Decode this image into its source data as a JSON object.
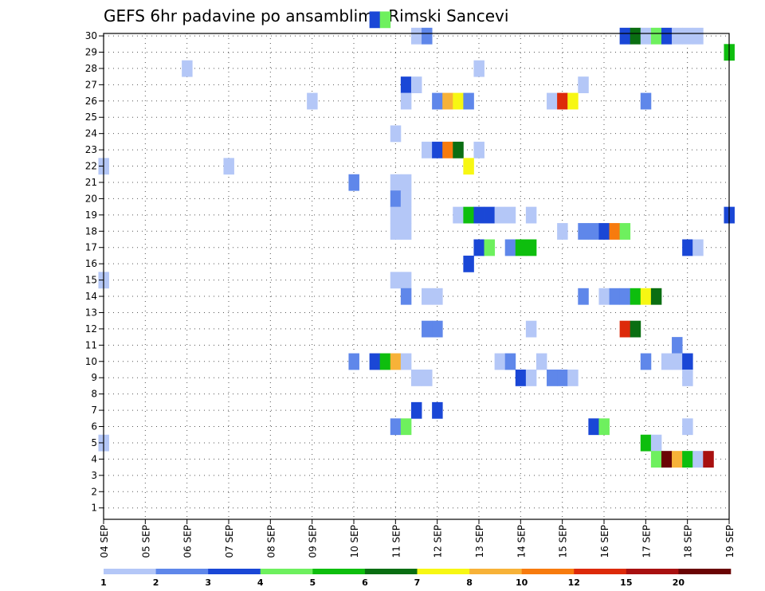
{
  "chart_data": {
    "type": "heatmap",
    "title": "GEFS 6hr padavine po ansamblima Rimski Sancevi",
    "xlabel": "",
    "ylabel": "",
    "x_ticks": [
      "04 SEP",
      "05 SEP",
      "06 SEP",
      "07 SEP",
      "08 SEP",
      "09 SEP",
      "10 SEP",
      "11 SEP",
      "12 SEP",
      "13 SEP",
      "14 SEP",
      "15 SEP",
      "16 SEP",
      "17 SEP",
      "18 SEP",
      "19 SEP"
    ],
    "xlim_days": [
      0,
      15
    ],
    "y_ticks": [
      "1",
      "2",
      "3",
      "4",
      "5",
      "6",
      "7",
      "8",
      "9",
      "10",
      "11",
      "12",
      "13",
      "14",
      "15",
      "16",
      "17",
      "18",
      "19",
      "20",
      "21",
      "22",
      "23",
      "24",
      "25",
      "26",
      "27",
      "28",
      "29",
      "30"
    ],
    "ylim": [
      0.3,
      30.15
    ],
    "grid": true,
    "colorbar": {
      "colors": [
        "#b4c7f7",
        "#5f87ea",
        "#1a47d6",
        "#6ef05e",
        "#0ebe0e",
        "#0a6e12",
        "#f7f713",
        "#f7b238",
        "#f77b0e",
        "#dd2a0a",
        "#a81010",
        "#6a0404"
      ],
      "labels": [
        "1",
        "2",
        "3",
        "4",
        "5",
        "6",
        "7",
        "8",
        "10",
        "12",
        "15",
        "20"
      ],
      "placement": "bottom"
    },
    "cells": [
      {
        "m": 30,
        "d": 6.5,
        "c": 2
      },
      {
        "m": 30,
        "d": 6.75,
        "c": 3
      },
      {
        "m": 29,
        "d": 7.5,
        "c": 0
      },
      {
        "m": 29,
        "d": 7.75,
        "c": 1
      },
      {
        "m": 29,
        "d": 12.5,
        "c": 2
      },
      {
        "m": 29,
        "d": 12.75,
        "c": 5
      },
      {
        "m": 29,
        "d": 13.0,
        "c": 0
      },
      {
        "m": 29,
        "d": 13.25,
        "c": 3
      },
      {
        "m": 29,
        "d": 13.5,
        "c": 2
      },
      {
        "m": 29,
        "d": 13.75,
        "c": 0
      },
      {
        "m": 29,
        "d": 14.0,
        "c": 0
      },
      {
        "m": 29,
        "d": 14.25,
        "c": 0
      },
      {
        "m": 28,
        "d": 15.0,
        "c": 4
      },
      {
        "m": 27,
        "d": 2.0,
        "c": 0
      },
      {
        "m": 27,
        "d": 9.0,
        "c": 0
      },
      {
        "m": 26,
        "d": 7.25,
        "c": 2
      },
      {
        "m": 26,
        "d": 7.5,
        "c": 0
      },
      {
        "m": 26,
        "d": 11.5,
        "c": 0
      },
      {
        "m": 25,
        "d": 5.0,
        "c": 0
      },
      {
        "m": 25,
        "d": 7.25,
        "c": 0
      },
      {
        "m": 25,
        "d": 8.0,
        "c": 1
      },
      {
        "m": 25,
        "d": 8.25,
        "c": 7
      },
      {
        "m": 25,
        "d": 8.5,
        "c": 6
      },
      {
        "m": 25,
        "d": 8.75,
        "c": 1
      },
      {
        "m": 25,
        "d": 10.75,
        "c": 0
      },
      {
        "m": 25,
        "d": 11.0,
        "c": 9
      },
      {
        "m": 25,
        "d": 11.25,
        "c": 6
      },
      {
        "m": 25,
        "d": 13.0,
        "c": 1
      },
      {
        "m": 23,
        "d": 7.0,
        "c": 0
      },
      {
        "m": 22,
        "d": 7.75,
        "c": 0
      },
      {
        "m": 22,
        "d": 8.0,
        "c": 2
      },
      {
        "m": 22,
        "d": 8.25,
        "c": 8
      },
      {
        "m": 22,
        "d": 8.5,
        "c": 5
      },
      {
        "m": 22,
        "d": 9.0,
        "c": 0
      },
      {
        "m": 21,
        "d": 0.0,
        "c": 0
      },
      {
        "m": 21,
        "d": 3.0,
        "c": 0
      },
      {
        "m": 21,
        "d": 8.75,
        "c": 6
      },
      {
        "m": 20,
        "d": 6.0,
        "c": 1
      },
      {
        "m": 20,
        "d": 7.0,
        "c": 0
      },
      {
        "m": 20,
        "d": 7.25,
        "c": 0
      },
      {
        "m": 19,
        "d": 7.0,
        "c": 1
      },
      {
        "m": 19,
        "d": 7.25,
        "c": 0
      },
      {
        "m": 18,
        "d": 7.0,
        "c": 0
      },
      {
        "m": 18,
        "d": 7.25,
        "c": 0
      },
      {
        "m": 18,
        "d": 8.5,
        "c": 0
      },
      {
        "m": 18,
        "d": 8.75,
        "c": 4
      },
      {
        "m": 18,
        "d": 9.0,
        "c": 2
      },
      {
        "m": 18,
        "d": 9.25,
        "c": 2
      },
      {
        "m": 18,
        "d": 9.5,
        "c": 0
      },
      {
        "m": 18,
        "d": 9.75,
        "c": 0
      },
      {
        "m": 18,
        "d": 10.25,
        "c": 0
      },
      {
        "m": 18,
        "d": 15.0,
        "c": 2
      },
      {
        "m": 17,
        "d": 7.0,
        "c": 0
      },
      {
        "m": 17,
        "d": 7.25,
        "c": 0
      },
      {
        "m": 17,
        "d": 11.0,
        "c": 0
      },
      {
        "m": 17,
        "d": 11.5,
        "c": 1
      },
      {
        "m": 17,
        "d": 11.75,
        "c": 1
      },
      {
        "m": 17,
        "d": 12.0,
        "c": 2
      },
      {
        "m": 17,
        "d": 12.25,
        "c": 8
      },
      {
        "m": 17,
        "d": 12.5,
        "c": 3
      },
      {
        "m": 16,
        "d": 9.0,
        "c": 2
      },
      {
        "m": 16,
        "d": 9.25,
        "c": 3
      },
      {
        "m": 16,
        "d": 9.75,
        "c": 1
      },
      {
        "m": 16,
        "d": 10.0,
        "c": 4
      },
      {
        "m": 16,
        "d": 10.25,
        "c": 4
      },
      {
        "m": 16,
        "d": 14.0,
        "c": 2
      },
      {
        "m": 16,
        "d": 14.25,
        "c": 0
      },
      {
        "m": 15,
        "d": 8.75,
        "c": 2
      },
      {
        "m": 14,
        "d": 0.0,
        "c": 0
      },
      {
        "m": 14,
        "d": 7.0,
        "c": 0
      },
      {
        "m": 14,
        "d": 7.25,
        "c": 0
      },
      {
        "m": 13,
        "d": 7.25,
        "c": 1
      },
      {
        "m": 13,
        "d": 7.75,
        "c": 0
      },
      {
        "m": 13,
        "d": 8.0,
        "c": 0
      },
      {
        "m": 13,
        "d": 11.5,
        "c": 1
      },
      {
        "m": 13,
        "d": 12.0,
        "c": 0
      },
      {
        "m": 13,
        "d": 12.25,
        "c": 1
      },
      {
        "m": 13,
        "d": 12.5,
        "c": 1
      },
      {
        "m": 13,
        "d": 12.75,
        "c": 4
      },
      {
        "m": 13,
        "d": 13.0,
        "c": 6
      },
      {
        "m": 13,
        "d": 13.25,
        "c": 5
      },
      {
        "m": 11,
        "d": 7.75,
        "c": 1
      },
      {
        "m": 11,
        "d": 8.0,
        "c": 1
      },
      {
        "m": 11,
        "d": 10.25,
        "c": 0
      },
      {
        "m": 11,
        "d": 12.5,
        "c": 9
      },
      {
        "m": 11,
        "d": 12.75,
        "c": 5
      },
      {
        "m": 10,
        "d": 13.75,
        "c": 1
      },
      {
        "m": 9,
        "d": 6.0,
        "c": 1
      },
      {
        "m": 9,
        "d": 6.5,
        "c": 2
      },
      {
        "m": 9,
        "d": 6.75,
        "c": 4
      },
      {
        "m": 9,
        "d": 7.0,
        "c": 7
      },
      {
        "m": 9,
        "d": 7.25,
        "c": 0
      },
      {
        "m": 9,
        "d": 9.5,
        "c": 0
      },
      {
        "m": 9,
        "d": 9.75,
        "c": 1
      },
      {
        "m": 9,
        "d": 10.5,
        "c": 0
      },
      {
        "m": 9,
        "d": 13.0,
        "c": 1
      },
      {
        "m": 9,
        "d": 13.5,
        "c": 0
      },
      {
        "m": 9,
        "d": 13.75,
        "c": 0
      },
      {
        "m": 9,
        "d": 14.0,
        "c": 2
      },
      {
        "m": 8,
        "d": 7.5,
        "c": 0
      },
      {
        "m": 8,
        "d": 7.75,
        "c": 0
      },
      {
        "m": 8,
        "d": 10.0,
        "c": 2
      },
      {
        "m": 8,
        "d": 10.25,
        "c": 0
      },
      {
        "m": 8,
        "d": 10.75,
        "c": 1
      },
      {
        "m": 8,
        "d": 11.0,
        "c": 1
      },
      {
        "m": 8,
        "d": 11.25,
        "c": 0
      },
      {
        "m": 8,
        "d": 14.0,
        "c": 0
      },
      {
        "m": 6,
        "d": 7.5,
        "c": 2
      },
      {
        "m": 6,
        "d": 8.0,
        "c": 2
      },
      {
        "m": 5,
        "d": 7.0,
        "c": 1
      },
      {
        "m": 5,
        "d": 7.25,
        "c": 3
      },
      {
        "m": 5,
        "d": 11.75,
        "c": 2
      },
      {
        "m": 5,
        "d": 12.0,
        "c": 3
      },
      {
        "m": 5,
        "d": 14.0,
        "c": 0
      },
      {
        "m": 4,
        "d": 0.0,
        "c": 0
      },
      {
        "m": 4,
        "d": 13.0,
        "c": 4
      },
      {
        "m": 4,
        "d": 13.25,
        "c": 0
      },
      {
        "m": 3,
        "d": 13.25,
        "c": 3
      },
      {
        "m": 3,
        "d": 13.5,
        "c": 11
      },
      {
        "m": 3,
        "d": 13.75,
        "c": 7
      },
      {
        "m": 3,
        "d": 14.0,
        "c": 4
      },
      {
        "m": 3,
        "d": 14.25,
        "c": 0
      },
      {
        "m": 3,
        "d": 14.5,
        "c": 10
      }
    ]
  }
}
